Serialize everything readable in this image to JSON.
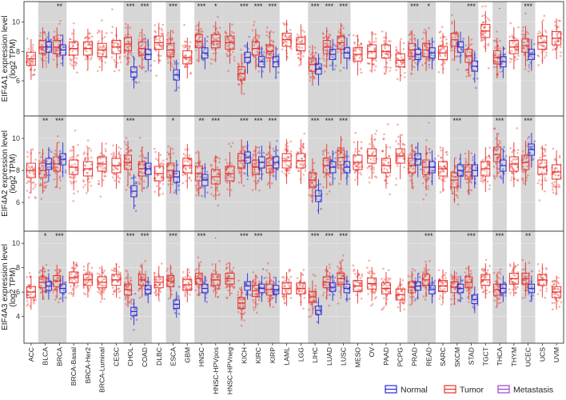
{
  "chart_data": {
    "type": "box",
    "categories": [
      "ACC",
      "BLCA",
      "BRCA",
      "BRCA-Basal",
      "BRCA-Her2",
      "BRCA-Luminal",
      "CESC",
      "CHOL",
      "COAD",
      "DLBC",
      "ESCA",
      "GBM",
      "HNSC",
      "HNSC-HPVpos",
      "HNSC-HPVneg",
      "KICH",
      "KIRC",
      "KIRP",
      "LAML",
      "LGG",
      "LIHC",
      "LUAD",
      "LUSC",
      "MESO",
      "OV",
      "PAAD",
      "PCPG",
      "PRAD",
      "READ",
      "SARC",
      "SKCM",
      "STAD",
      "TGCT",
      "THCA",
      "THYM",
      "UCEC",
      "UCS",
      "UVM"
    ],
    "shaded_categories": [
      "BLCA",
      "BRCA",
      "CHOL",
      "COAD",
      "ESCA",
      "HNSC",
      "HNSC-HPVpos",
      "HNSC-HPVneg",
      "KICH",
      "KIRC",
      "KIRP",
      "LIHC",
      "LUAD",
      "LUSC",
      "PRAD",
      "READ",
      "SKCM",
      "STAD",
      "THCA",
      "UCEC"
    ],
    "groups": {
      "normal": {
        "name": "Normal",
        "color": "#2a2ad8"
      },
      "tumor": {
        "name": "Tumor",
        "color": "#e8322c"
      },
      "metastasis": {
        "name": "Metastasis",
        "color": "#a040d0"
      }
    },
    "panels": [
      {
        "ylabel": "EIF4A1 expression level\n(log2 TPM)",
        "ylim": [
          3.6,
          11.4
        ],
        "yticks": [
          6,
          8,
          10
        ],
        "significance": {
          "BRCA": "**",
          "CHOL": "***",
          "COAD": "***",
          "ESCA": "***",
          "HNSC": "***",
          "HNSC-HPVpos": "*",
          "KICH": "***",
          "KIRC": "***",
          "KIRP": "***",
          "LIHC": "***",
          "LUAD": "***",
          "LUSC": "***",
          "PRAD": "***",
          "READ": "*",
          "STAD": "***",
          "THCA": ".",
          "UCEC": "***"
        },
        "tumor_median": {
          "ACC": 7.5,
          "BLCA": 8.3,
          "BRCA": 8.3,
          "BRCA-Basal": 8.2,
          "BRCA-Her2": 8.2,
          "BRCA-Luminal": 8.1,
          "CESC": 8.3,
          "CHOL": 8.5,
          "COAD": 8.2,
          "DLBC": 8.6,
          "ESCA": 8.1,
          "GBM": 7.6,
          "HNSC": 8.7,
          "HNSC-HPVpos": 8.7,
          "HNSC-HPVneg": 8.6,
          "KICH": 6.5,
          "KIRC": 8.2,
          "KIRP": 8.0,
          "LAML": 8.8,
          "LGG": 8.5,
          "LIHC": 7.1,
          "LUAD": 8.3,
          "LUSC": 8.6,
          "MESO": 7.8,
          "OV": 8.0,
          "PAAD": 8.0,
          "PCPG": 7.4,
          "PRAD": 8.1,
          "READ": 8.1,
          "SARC": 7.9,
          "SKCM": 8.8,
          "STAD": 7.7,
          "TGCT": 9.4,
          "THCA": 7.6,
          "THYM": 8.3,
          "UCEC": 8.4,
          "UCS": 8.6,
          "UVM": 8.9
        },
        "normal_median": {
          "BLCA": 8.3,
          "BRCA": 8.1,
          "CHOL": 6.6,
          "COAD": 7.8,
          "ESCA": 6.4,
          "HNSC": 7.9,
          "KICH": 7.6,
          "KIRC": 7.3,
          "KIRP": 7.3,
          "LIHC": 6.8,
          "LUAD": 7.8,
          "LUSC": 7.9,
          "PRAD": 7.8,
          "READ": 7.9,
          "SKCM": 8.3,
          "STAD": 7.0,
          "THCA": 7.3,
          "UCEC": 7.8
        },
        "metastasis_median": {
          "SKCM": 8.6
        }
      },
      {
        "ylabel": "EIF4A2 expression level\n(log2 TPM)",
        "ylim": [
          4.2,
          11.4
        ],
        "yticks": [
          6,
          8,
          10
        ],
        "significance": {
          "BLCA": "**",
          "BRCA": "***",
          "CHOL": "***",
          "ESCA": "*",
          "HNSC": "**",
          "HNSC-HPVpos": "***",
          "KICH": "***",
          "KIRC": "***",
          "KIRP": "***",
          "LIHC": "***",
          "LUAD": "***",
          "LUSC": "***",
          "READ": ".",
          "SKCM": "***",
          "THCA": "***",
          "UCEC": "***"
        },
        "tumor_median": {
          "ACC": 8.0,
          "BLCA": 8.0,
          "BRCA": 8.4,
          "BRCA-Basal": 8.2,
          "BRCA-Her2": 8.1,
          "BRCA-Luminal": 8.4,
          "CESC": 8.3,
          "CHOL": 8.5,
          "COAD": 8.1,
          "DLBC": 7.8,
          "ESCA": 8.0,
          "GBM": 8.3,
          "HNSC": 7.8,
          "HNSC-HPVpos": 7.6,
          "HNSC-HPVneg": 7.8,
          "KICH": 8.6,
          "KIRC": 8.2,
          "KIRP": 8.3,
          "LAML": 8.6,
          "LGG": 8.6,
          "LIHC": 7.4,
          "LUAD": 8.3,
          "LUSC": 8.8,
          "MESO": 8.5,
          "OV": 8.9,
          "PAAD": 8.3,
          "PCPG": 8.9,
          "PRAD": 8.3,
          "READ": 8.2,
          "SARC": 8.1,
          "SKCM": 7.4,
          "STAD": 7.9,
          "TGCT": 8.1,
          "THCA": 9.0,
          "THYM": 8.4,
          "UCEC": 8.5,
          "UCS": 8.2,
          "UVM": 7.9
        },
        "normal_median": {
          "BLCA": 8.4,
          "BRCA": 8.7,
          "CHOL": 6.7,
          "COAD": 8.1,
          "ESCA": 7.6,
          "HNSC": 7.4,
          "KICH": 8.8,
          "KIRC": 8.5,
          "KIRP": 8.5,
          "LIHC": 6.4,
          "LUAD": 8.2,
          "LUSC": 8.2,
          "PRAD": 8.7,
          "READ": 8.2,
          "SKCM": 8.0,
          "STAD": 8.0,
          "THCA": 8.3,
          "UCEC": 9.3
        },
        "metastasis_median": {
          "SKCM": 8.0
        }
      },
      {
        "ylabel": "EIF4A3 expression level\n(log2 TPM)",
        "ylim": [
          1.8,
          11.0
        ],
        "yticks": [
          4,
          6,
          8,
          10
        ],
        "significance": {
          "BLCA": "*",
          "BRCA": "***",
          "CHOL": "***",
          "COAD": "***",
          "ESCA": "***",
          "HNSC": "***",
          "HNSC-HPVpos": ".",
          "KICH": "***",
          "KIRC": "***",
          "LIHC": "***",
          "LUAD": "***",
          "LUSC": "***",
          "READ": "***",
          "STAD": "***",
          "THCA": "***",
          "UCEC": "**"
        },
        "tumor_median": {
          "ACC": 6.0,
          "BLCA": 6.8,
          "BRCA": 6.9,
          "BRCA-Basal": 7.2,
          "BRCA-Her2": 7.0,
          "BRCA-Luminal": 6.8,
          "CESC": 7.0,
          "CHOL": 6.2,
          "COAD": 7.0,
          "DLBC": 6.8,
          "ESCA": 6.9,
          "GBM": 6.6,
          "HNSC": 7.1,
          "HNSC-HPVpos": 7.0,
          "HNSC-HPVneg": 7.1,
          "KICH": 5.1,
          "KIRC": 6.1,
          "KIRP": 6.2,
          "LAML": 6.3,
          "LGG": 6.3,
          "LIHC": 5.6,
          "LUAD": 6.8,
          "LUSC": 7.1,
          "MESO": 6.5,
          "OV": 6.7,
          "PAAD": 6.3,
          "PCPG": 5.8,
          "PRAD": 6.4,
          "READ": 7.0,
          "SARC": 6.5,
          "SKCM": 6.4,
          "STAD": 6.8,
          "TGCT": 7.0,
          "THCA": 6.2,
          "THYM": 7.1,
          "UCEC": 7.1,
          "UCS": 7.0,
          "UVM": 6.0
        },
        "normal_median": {
          "BLCA": 6.5,
          "BRCA": 6.3,
          "CHOL": 4.4,
          "COAD": 6.2,
          "ESCA": 5.0,
          "HNSC": 6.3,
          "KICH": 6.5,
          "KIRC": 6.3,
          "KIRP": 6.2,
          "LIHC": 4.5,
          "LUAD": 6.4,
          "LUSC": 6.3,
          "PRAD": 6.5,
          "READ": 6.2,
          "SKCM": 6.3,
          "STAD": 5.4,
          "THCA": 6.3,
          "UCEC": 6.3
        },
        "metastasis_median": {
          "SKCM": 6.6
        }
      }
    ],
    "legend_position": "bottom-right"
  }
}
